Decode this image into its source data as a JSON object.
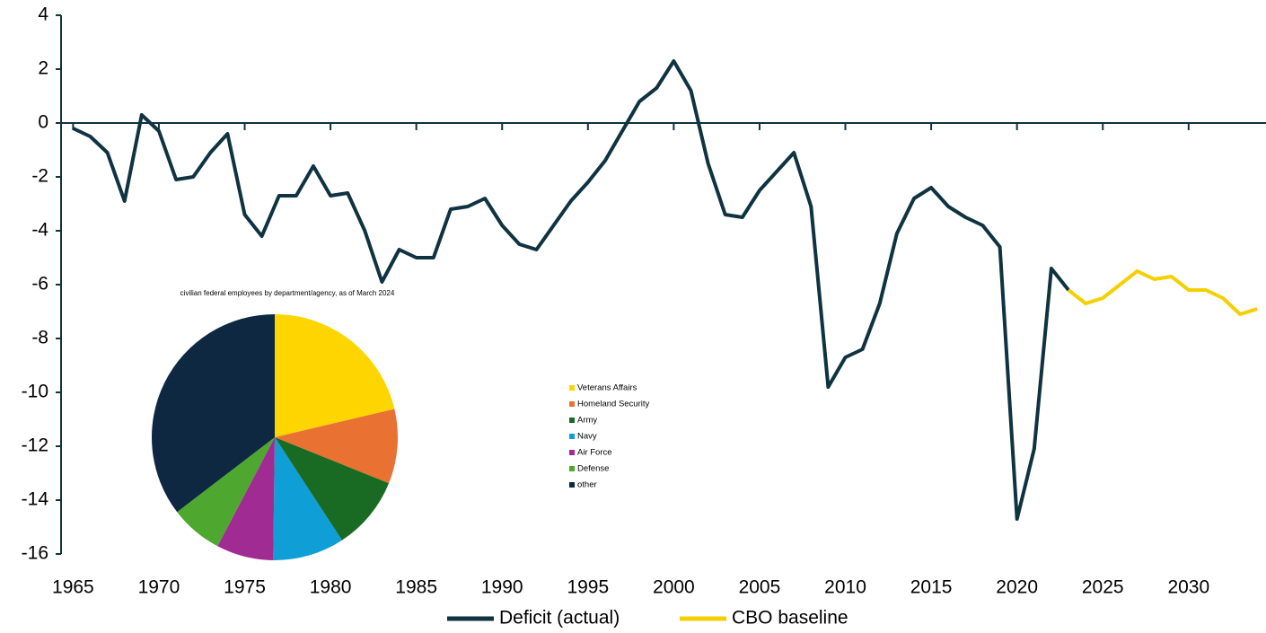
{
  "chart_data": [
    {
      "type": "line",
      "x": [
        1965,
        1966,
        1967,
        1968,
        1969,
        1970,
        1971,
        1972,
        1973,
        1974,
        1975,
        1976,
        1977,
        1978,
        1979,
        1980,
        1981,
        1982,
        1983,
        1984,
        1985,
        1986,
        1987,
        1988,
        1989,
        1990,
        1991,
        1992,
        1993,
        1994,
        1995,
        1996,
        1997,
        1998,
        1999,
        2000,
        2001,
        2002,
        2003,
        2004,
        2005,
        2006,
        2007,
        2008,
        2009,
        2010,
        2011,
        2012,
        2013,
        2014,
        2015,
        2016,
        2017,
        2018,
        2019,
        2020,
        2021,
        2022,
        2023,
        2024,
        2025,
        2026,
        2027,
        2028,
        2029,
        2030,
        2031,
        2032,
        2033,
        2034
      ],
      "series": [
        {
          "name": "Deficit (actual)",
          "color": "#0f3341",
          "values": [
            -0.2,
            -0.5,
            -1.1,
            -2.9,
            0.3,
            -0.3,
            -2.1,
            -2.0,
            -1.1,
            -0.4,
            -3.4,
            -4.2,
            -2.7,
            -2.7,
            -1.6,
            -2.7,
            -2.6,
            -4.0,
            -5.9,
            -4.7,
            -5.0,
            -5.0,
            -3.2,
            -3.1,
            -2.8,
            -3.8,
            -4.5,
            -4.7,
            -3.8,
            -2.9,
            -2.2,
            -1.4,
            -0.3,
            0.8,
            1.3,
            2.3,
            1.2,
            -1.5,
            -3.4,
            -3.5,
            -2.5,
            -1.8,
            -1.1,
            -3.1,
            -9.8,
            -8.7,
            -8.4,
            -6.7,
            -4.1,
            -2.8,
            -2.4,
            -3.1,
            -3.5,
            -3.8,
            -4.6,
            -14.7,
            -12.1,
            -5.4,
            -6.2,
            null,
            null,
            null,
            null,
            null,
            null,
            null,
            null,
            null,
            null,
            null
          ]
        },
        {
          "name": "CBO baseline",
          "color": "#f5d000",
          "values": [
            null,
            null,
            null,
            null,
            null,
            null,
            null,
            null,
            null,
            null,
            null,
            null,
            null,
            null,
            null,
            null,
            null,
            null,
            null,
            null,
            null,
            null,
            null,
            null,
            null,
            null,
            null,
            null,
            null,
            null,
            null,
            null,
            null,
            null,
            null,
            null,
            null,
            null,
            null,
            null,
            null,
            null,
            null,
            null,
            null,
            null,
            null,
            null,
            null,
            null,
            null,
            null,
            null,
            null,
            null,
            null,
            null,
            null,
            -6.2,
            -6.7,
            -6.5,
            -6.0,
            -5.5,
            -5.8,
            -5.7,
            -6.2,
            -6.2,
            -6.5,
            -7.1,
            -6.9
          ]
        }
      ],
      "xlim": [
        1964.3,
        2034.3
      ],
      "xticks": [
        1965,
        1970,
        1975,
        1980,
        1985,
        1990,
        1995,
        2000,
        2005,
        2010,
        2015,
        2020,
        2025,
        2030
      ],
      "ylim": [
        -16,
        4
      ],
      "yticks": [
        4,
        2,
        0,
        -2,
        -4,
        -6,
        -8,
        -10,
        -12,
        -14,
        -16
      ],
      "legend": "bottom"
    },
    {
      "type": "pie",
      "title": "civilian federal employees by department/agency, as of March 2024",
      "categories": [
        "Veterans Affairs",
        "Homeland Security",
        "Army",
        "Navy",
        "Air Force",
        "Defense",
        "other"
      ],
      "values": [
        21.3,
        9.8,
        9.7,
        9.4,
        7.5,
        6.9,
        35.4
      ],
      "colors": [
        "#ffd500",
        "#e97132",
        "#196b24",
        "#0f9ed5",
        "#a02b93",
        "#4ea72e",
        "#0e2841"
      ],
      "legend": "right"
    }
  ]
}
